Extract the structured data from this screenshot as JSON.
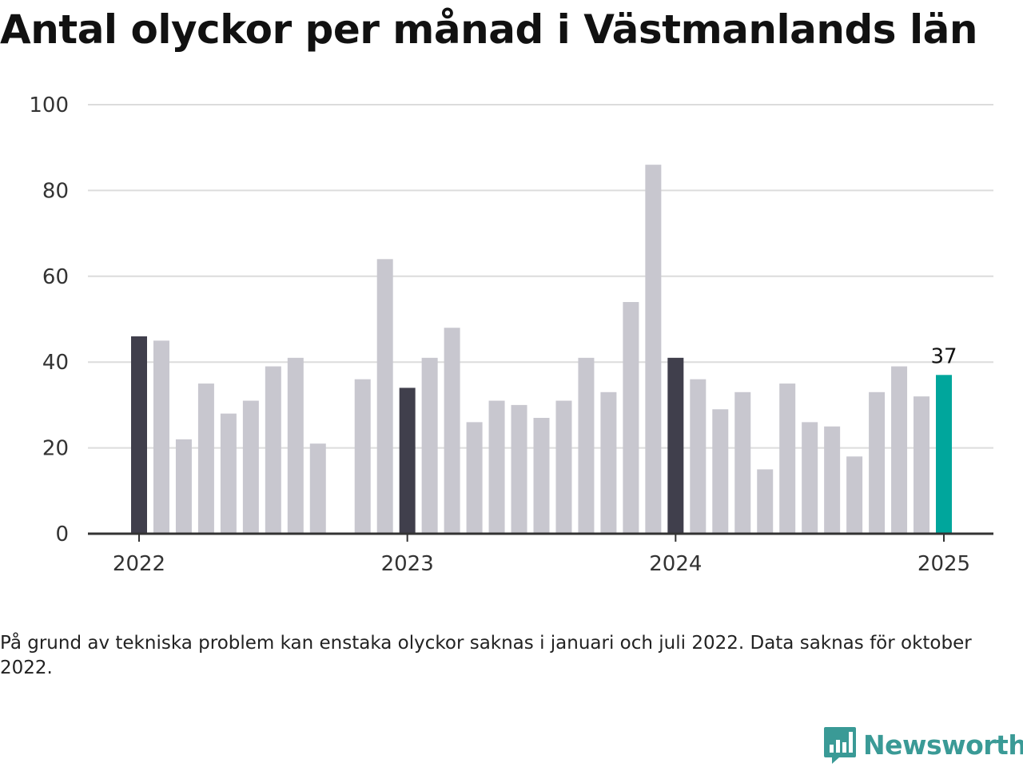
{
  "title": "Antal olyckor per månad i Västmanlands län",
  "note": "På grund av tekniska problem kan enstaka olyckor saknas i januari och juli 2022. Data saknas för oktober 2022.",
  "logo": {
    "name": "Newsworthy",
    "icon": "newsworthy-logo-icon"
  },
  "colors": {
    "january": "#403f4c",
    "regular": "#c8c7cf",
    "latest": "#00a69c",
    "grid": "#dcdcdc",
    "axis": "#333333",
    "brand": "#3a9a96"
  },
  "chart_data": {
    "type": "bar",
    "title": "Antal olyckor per månad i Västmanlands län",
    "xlabel": "",
    "ylabel": "",
    "ylim": [
      0,
      100
    ],
    "yticks": [
      0,
      20,
      40,
      60,
      80,
      100
    ],
    "xticks": [
      "2022",
      "2023",
      "2024",
      "2025"
    ],
    "grid": true,
    "categories": [
      "2022-01",
      "2022-02",
      "2022-03",
      "2022-04",
      "2022-05",
      "2022-06",
      "2022-07",
      "2022-08",
      "2022-09",
      "2022-10",
      "2022-11",
      "2022-12",
      "2023-01",
      "2023-02",
      "2023-03",
      "2023-04",
      "2023-05",
      "2023-06",
      "2023-07",
      "2023-08",
      "2023-09",
      "2023-10",
      "2023-11",
      "2023-12",
      "2024-01",
      "2024-02",
      "2024-03",
      "2024-04",
      "2024-05",
      "2024-06",
      "2024-07",
      "2024-08",
      "2024-09",
      "2024-10",
      "2024-11",
      "2024-12",
      "2025-01"
    ],
    "values": [
      46,
      45,
      22,
      35,
      28,
      31,
      39,
      41,
      21,
      null,
      36,
      64,
      34,
      41,
      48,
      26,
      31,
      30,
      27,
      31,
      41,
      33,
      54,
      86,
      41,
      36,
      29,
      33,
      15,
      35,
      26,
      25,
      18,
      33,
      39,
      32,
      37
    ],
    "data_labels": [
      {
        "category": "2025-01",
        "text": "37"
      }
    ]
  }
}
